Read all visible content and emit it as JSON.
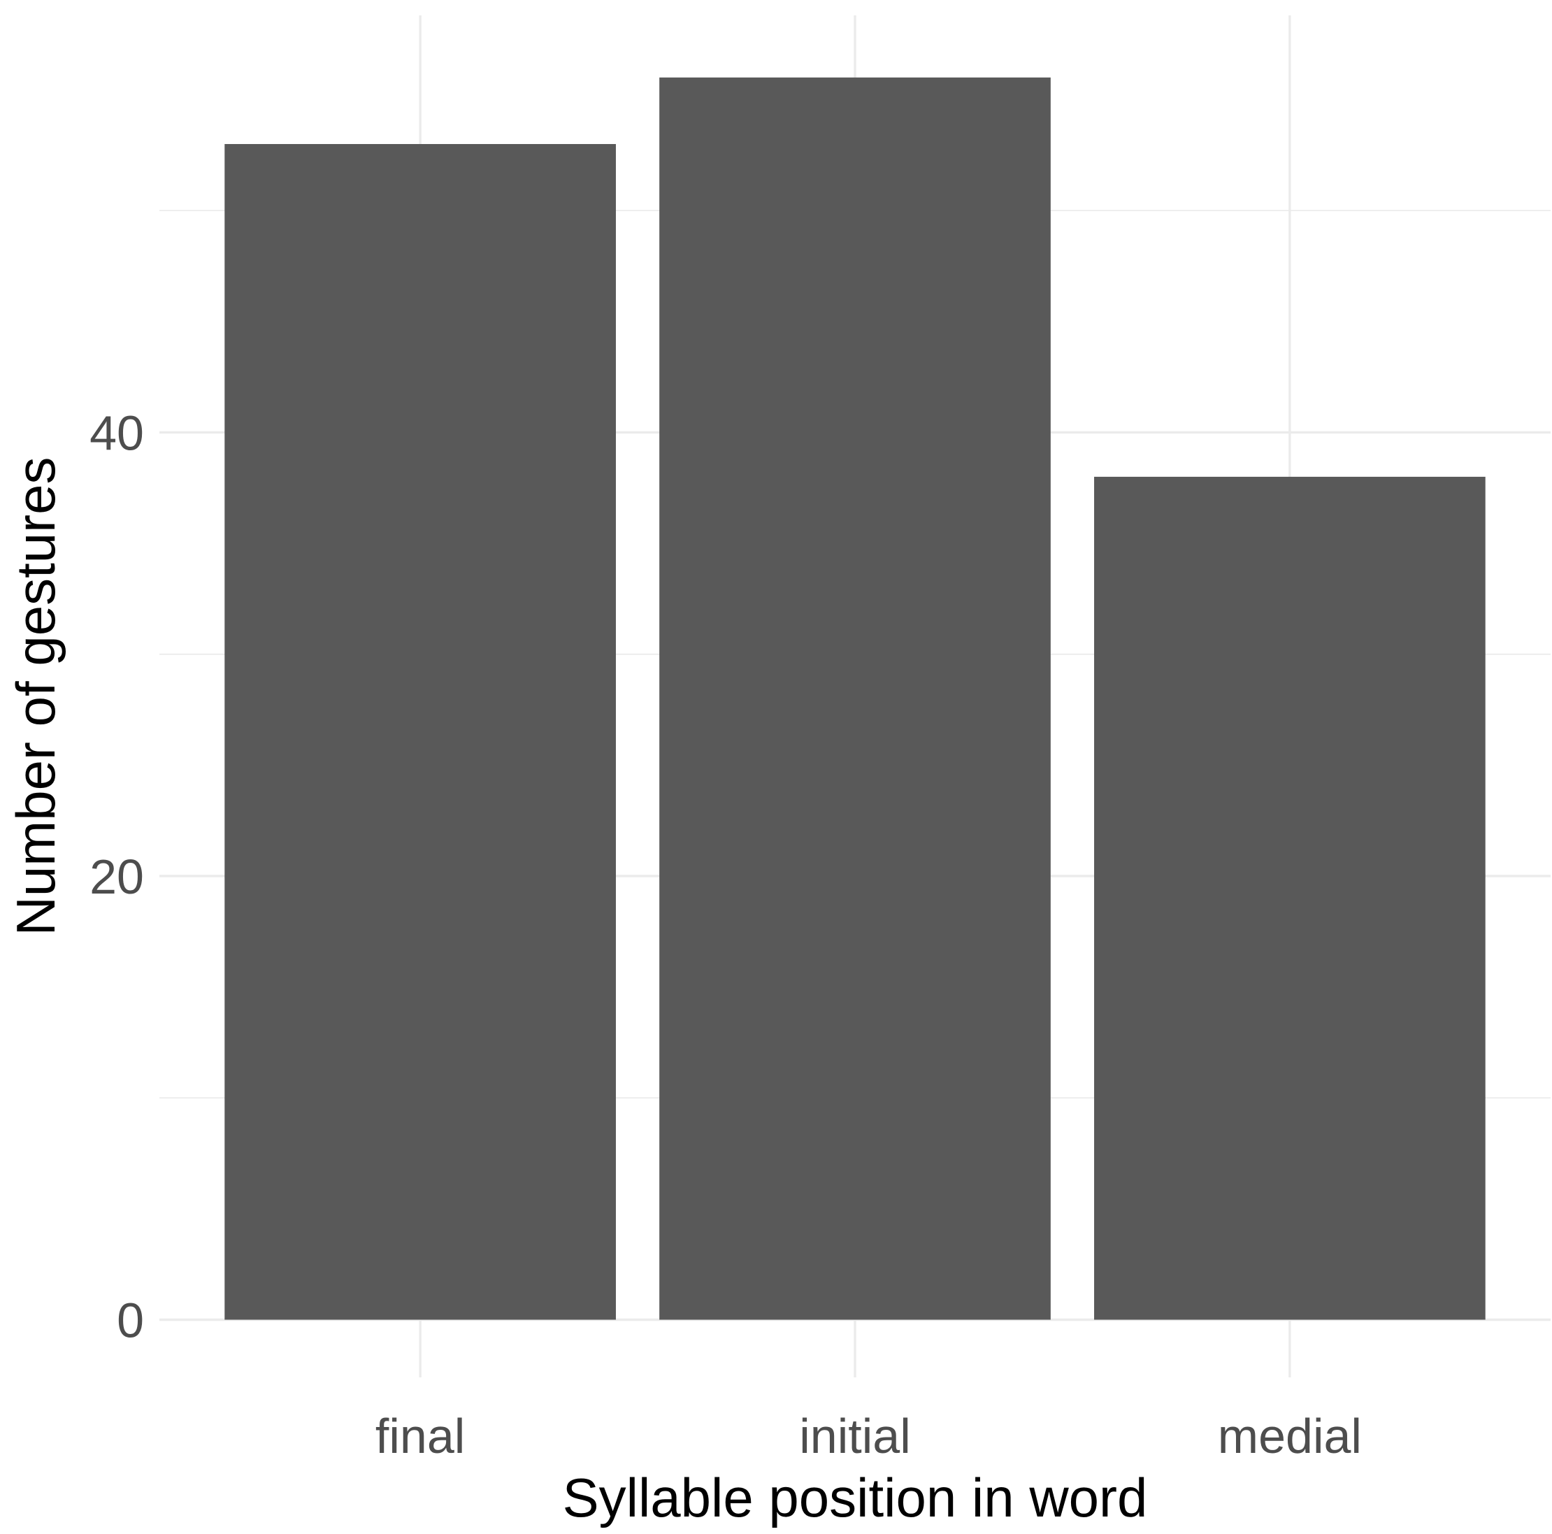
{
  "chart_data": {
    "type": "bar",
    "categories": [
      "final",
      "initial",
      "medial"
    ],
    "values": [
      53,
      56,
      38
    ],
    "xlabel": "Syllable position in word",
    "ylabel": "Number of gestures",
    "ylim": [
      -2.6,
      58.8
    ],
    "yticks": [
      0,
      20,
      40
    ],
    "yticks_minor": [
      10,
      30,
      50
    ],
    "grid": true,
    "legend": "none",
    "colors": {
      "bar": "#595959",
      "grid": "#ebebeb",
      "tick_text": "#4d4d4d",
      "title_text": "#000000"
    }
  }
}
